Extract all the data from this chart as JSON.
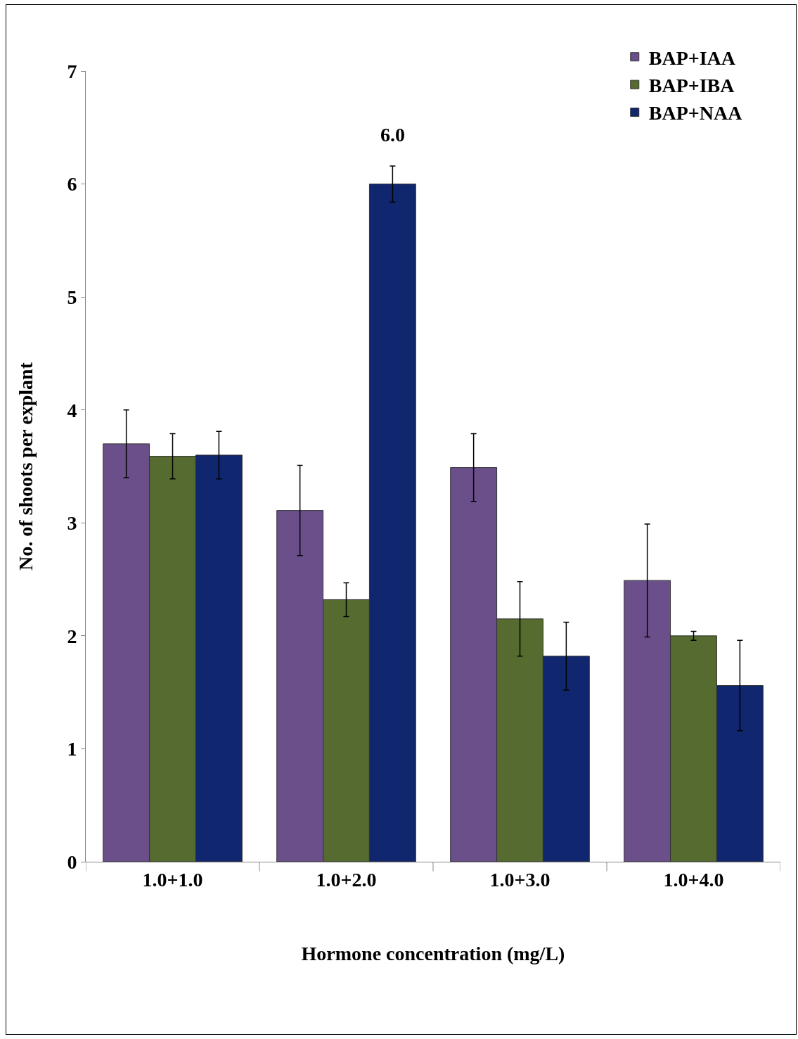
{
  "chart_data": {
    "type": "bar",
    "xlabel": "Hormone concentration (mg/L)",
    "ylabel": "No. of shoots per explant",
    "categories": [
      "1.0+1.0",
      "1.0+2.0",
      "1.0+3.0",
      "1.0+4.0"
    ],
    "series": [
      {
        "name": "BAP+IAA",
        "color": "#6a4f8a",
        "values": [
          3.7,
          3.11,
          3.49,
          2.49
        ],
        "errors": [
          0.3,
          0.4,
          0.3,
          0.5
        ]
      },
      {
        "name": "BAP+IBA",
        "color": "#556b2f",
        "values": [
          3.59,
          2.32,
          2.15,
          2.0
        ],
        "errors": [
          0.2,
          0.15,
          0.33,
          0.04
        ]
      },
      {
        "name": "BAP+NAA",
        "color": "#10266e",
        "values": [
          3.6,
          6.0,
          1.82,
          1.56
        ],
        "errors": [
          0.21,
          0.16,
          0.3,
          0.4
        ],
        "value_labels": [
          null,
          "6.0",
          null,
          null
        ]
      }
    ],
    "ylim": [
      0,
      7
    ],
    "yticks": [
      0,
      1,
      2,
      3,
      4,
      5,
      6,
      7
    ],
    "grid": false,
    "legend": "top right"
  }
}
